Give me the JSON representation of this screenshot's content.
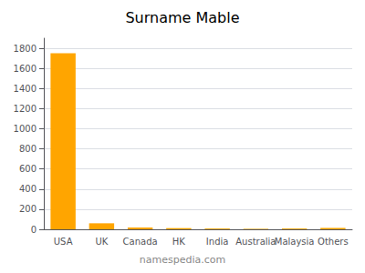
{
  "chart_data": {
    "type": "bar",
    "title": "Surname Mable",
    "categories": [
      "USA",
      "UK",
      "Canada",
      "HK",
      "India",
      "Australia",
      "Malaysia",
      "Others"
    ],
    "values": [
      1750,
      60,
      18,
      12,
      8,
      5,
      8,
      14
    ],
    "color": "#FFA500",
    "ylim": [
      0,
      1900
    ],
    "yticks": [
      0,
      200,
      400,
      600,
      800,
      1000,
      1200,
      1400,
      1600,
      1800
    ],
    "grid": true,
    "annotations": [
      "namespedia.com"
    ]
  }
}
